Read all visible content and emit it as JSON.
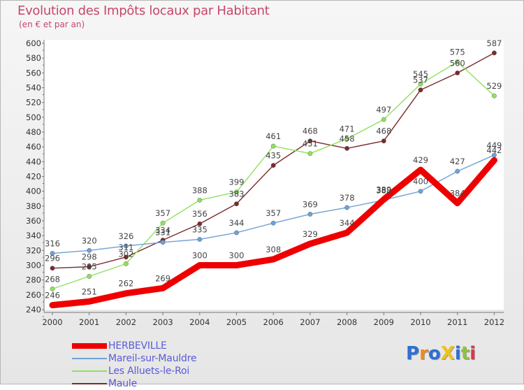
{
  "header": {
    "title": "Evolution des Impôts locaux par Habitant",
    "subtitle": "(en € et par an)"
  },
  "logo": {
    "text": "ProXiti"
  },
  "chart_data": {
    "type": "line",
    "title": "Evolution des Impôts locaux par Habitant",
    "subtitle": "(en € et par an)",
    "x": [
      "2000",
      "2001",
      "2002",
      "2003",
      "2004",
      "2005",
      "2006",
      "2007",
      "2008",
      "2009",
      "2010",
      "2011",
      "2012"
    ],
    "ylim": [
      240,
      600
    ],
    "yticks": [
      240,
      260,
      280,
      300,
      320,
      340,
      360,
      380,
      400,
      420,
      440,
      460,
      480,
      500,
      520,
      540,
      560,
      580,
      600
    ],
    "grid": false,
    "legend_position": "bottom-left",
    "series": [
      {
        "name": "HERBEVILLE",
        "color": "#ee0000",
        "values": [
          246,
          251,
          262,
          269,
          300,
          300,
          308,
          329,
          344,
          389,
          429,
          384,
          442
        ]
      },
      {
        "name": "Mareil-sur-Mauldre",
        "color": "#6fa0d6",
        "values": [
          316,
          320,
          326,
          331,
          335,
          344,
          357,
          369,
          378,
          388,
          400,
          427,
          449
        ]
      },
      {
        "name": "Les Alluets-le-Roi",
        "color": "#90e060",
        "values": [
          268,
          285,
          302,
          357,
          388,
          399,
          461,
          451,
          471,
          497,
          545,
          575,
          529
        ]
      },
      {
        "name": "Maule",
        "color": "#7a2b2b",
        "values": [
          296,
          298,
          311,
          334,
          356,
          383,
          435,
          468,
          458,
          468,
          537,
          560,
          587
        ]
      }
    ]
  }
}
